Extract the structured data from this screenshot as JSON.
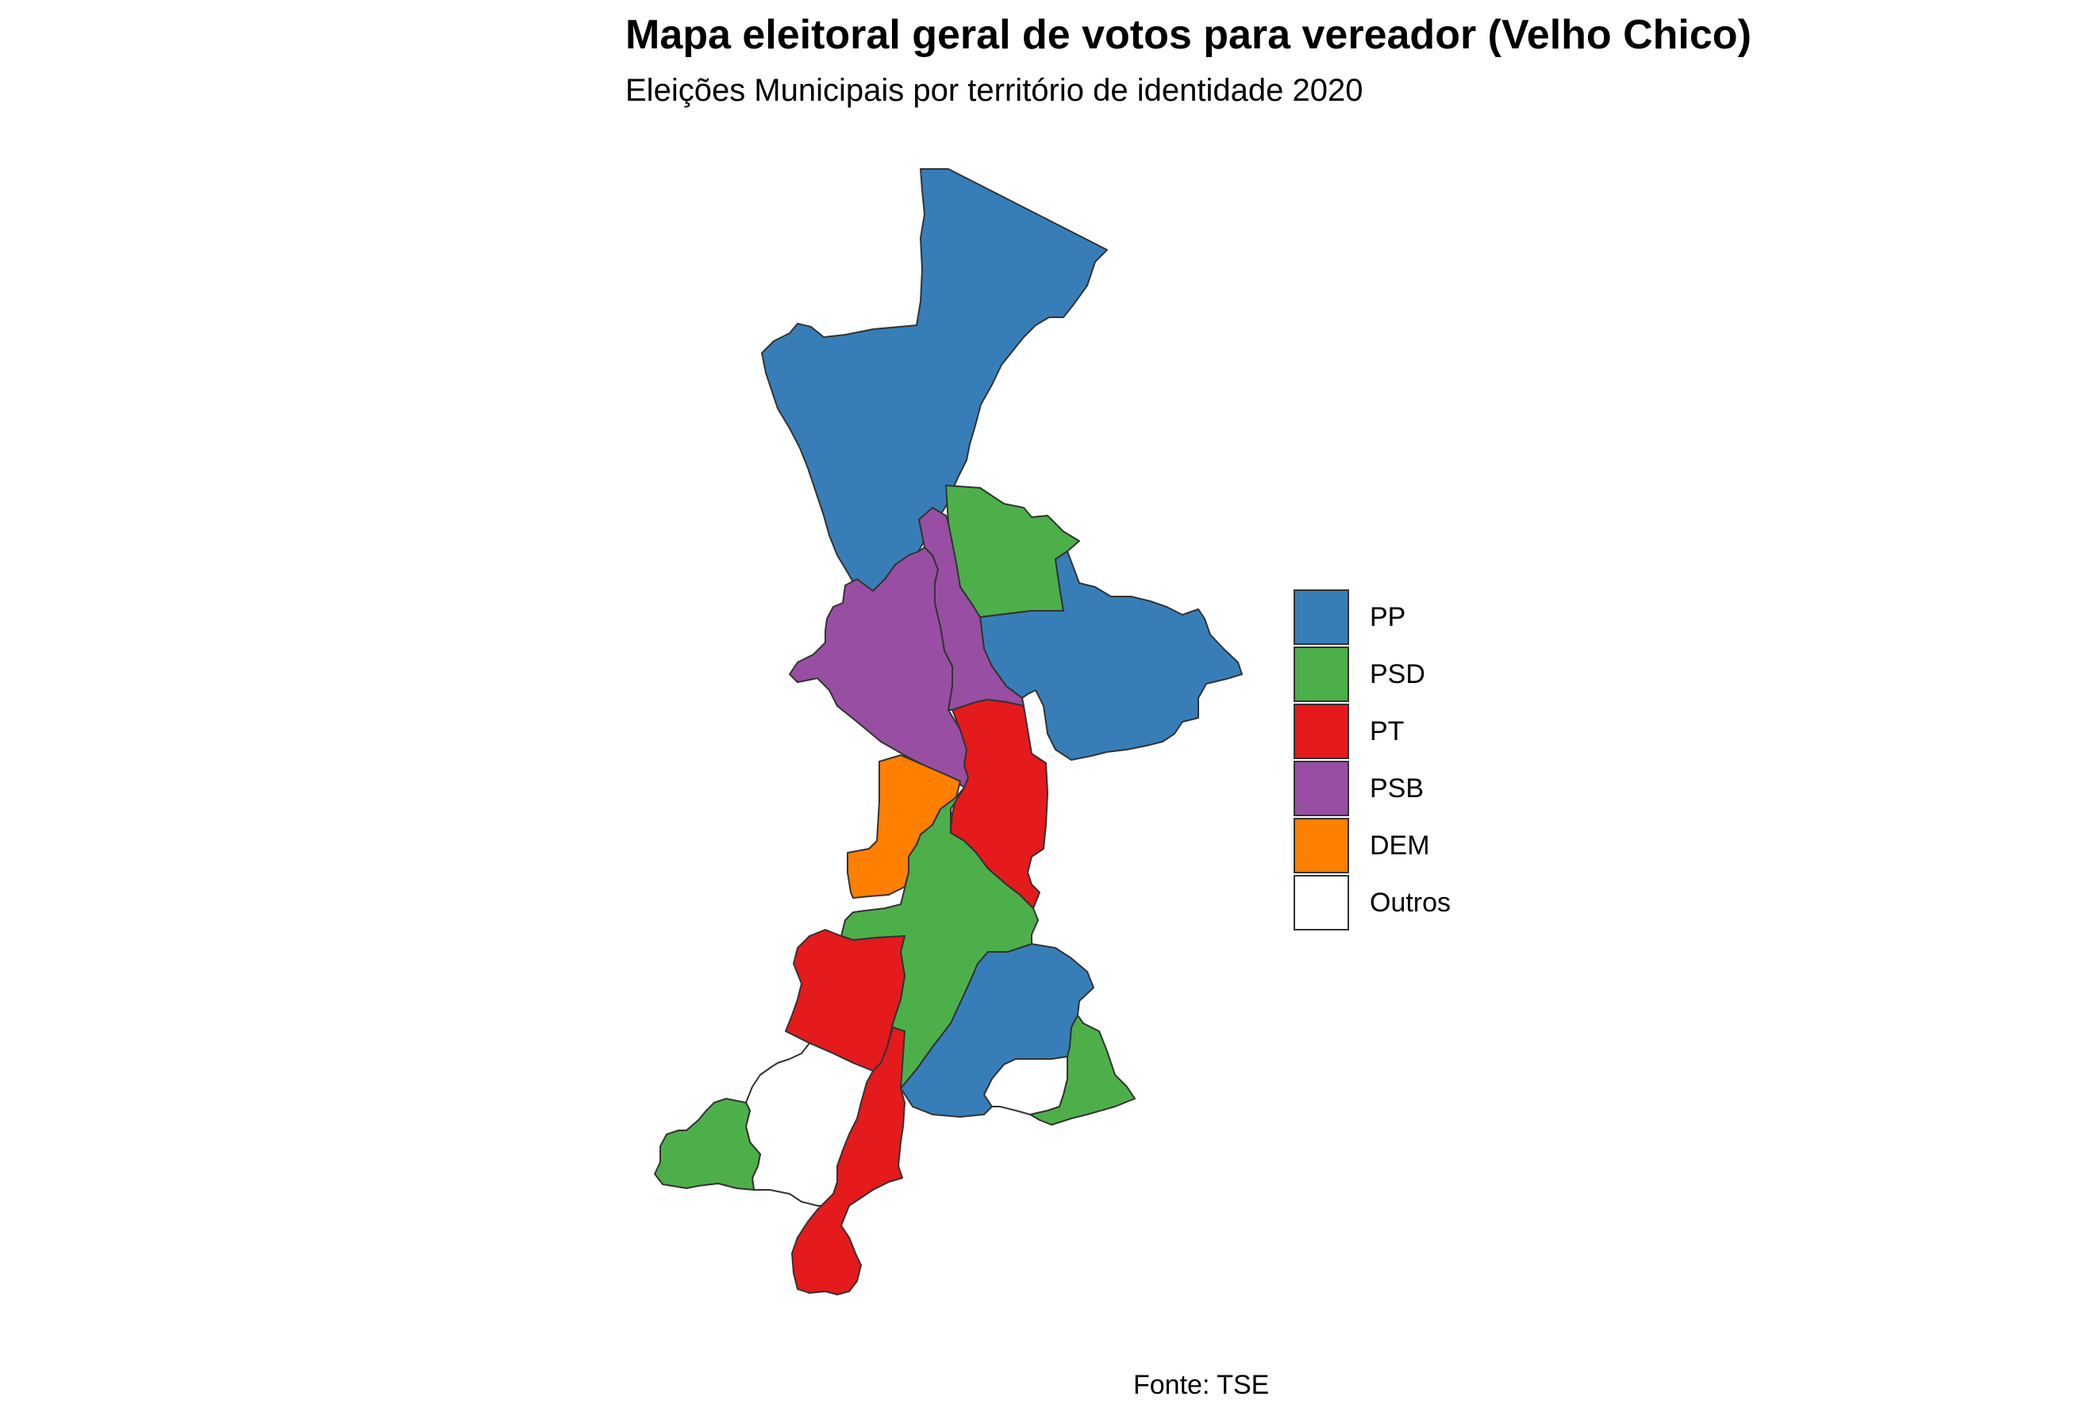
{
  "title": "Mapa eleitoral geral de votos para vereador (Velho Chico)",
  "subtitle": "Eleições Municipais por território de identidade 2020",
  "caption": "Fonte: TSE",
  "legend": {
    "items": [
      {
        "label": "PP",
        "color": "#377EB8"
      },
      {
        "label": "PSD",
        "color": "#4DAF4A"
      },
      {
        "label": "PT",
        "color": "#E41A1C"
      },
      {
        "label": "PSB",
        "color": "#984EA3"
      },
      {
        "label": "DEM",
        "color": "#FF7F00"
      },
      {
        "label": "Outros",
        "color": "#FFFFFF"
      }
    ]
  },
  "regions": [
    {
      "party": "PP"
    },
    {
      "party": "PSD"
    },
    {
      "party": "PP"
    },
    {
      "party": "PSB"
    },
    {
      "party": "PSB"
    },
    {
      "party": "PT"
    },
    {
      "party": "DEM"
    },
    {
      "party": "PSD"
    },
    {
      "party": "PT"
    },
    {
      "party": "PP"
    },
    {
      "party": "PSD"
    },
    {
      "party": "Outros"
    },
    {
      "party": "Outros"
    },
    {
      "party": "PSD"
    },
    {
      "party": "PT"
    }
  ]
}
